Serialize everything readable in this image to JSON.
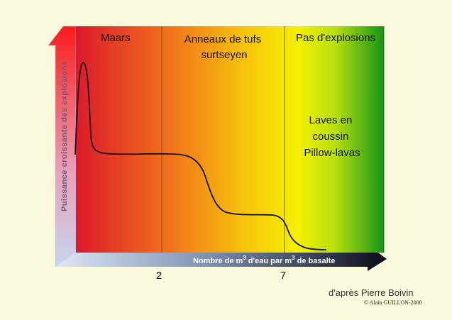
{
  "zones": [
    {
      "label": "Maars"
    },
    {
      "label_lines": [
        "Anneaux de tufs",
        "surtseyen"
      ]
    },
    {
      "label": "Pas d'explosions",
      "sub_lines": [
        "Laves en",
        "coussin",
        "Pillow-lavas"
      ]
    }
  ],
  "y_axis_label": "Puissance croissante des explosions",
  "x_axis_label": {
    "pre": "Nombre de m",
    "sup1": "3",
    "mid": " d'eau par m",
    "sup2": "3",
    "post": " de basalte"
  },
  "x_ticks": [
    "2",
    "7"
  ],
  "gradient_colors": [
    "#e8202a",
    "#f07818",
    "#f6c00a",
    "#f6f200",
    "#1a9a1a"
  ],
  "credit": "d'après Pierre Boivin",
  "copyright": "© Alain GUILLON-2000"
}
